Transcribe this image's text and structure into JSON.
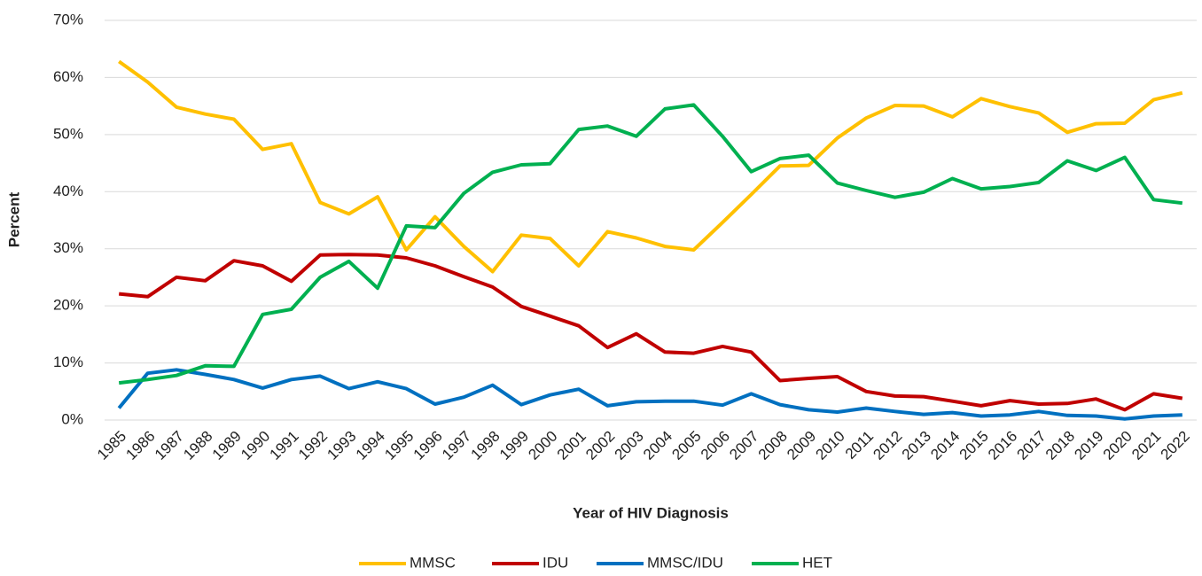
{
  "chart_data": {
    "type": "line",
    "y_label": "Percent",
    "x_label": "Year of HIV Diagnosis",
    "categories": [
      "1985",
      "1986",
      "1987",
      "1988",
      "1989",
      "1990",
      "1991",
      "1992",
      "1993",
      "1994",
      "1995",
      "1996",
      "1997",
      "1998",
      "1999",
      "2000",
      "2001",
      "2002",
      "2003",
      "2004",
      "2005",
      "2006",
      "2007",
      "2008",
      "2009",
      "2010",
      "2011",
      "2012",
      "2013",
      "2014",
      "2015",
      "2016",
      "2017",
      "2018",
      "2019",
      "2020",
      "2021",
      "2022"
    ],
    "series": [
      {
        "name": "MMSC",
        "color": "#FFC000",
        "values": [
          62.8,
          59.2,
          54.8,
          53.6,
          52.7,
          47.4,
          48.4,
          38.1,
          36.1,
          39.1,
          29.8,
          35.6,
          30.4,
          26.0,
          32.4,
          31.8,
          27.0,
          33.0,
          31.9,
          30.4,
          29.8,
          34.6,
          39.5,
          44.5,
          44.6,
          49.4,
          52.9,
          55.1,
          55.0,
          53.1,
          56.3,
          54.9,
          53.8,
          50.4,
          51.9,
          52.0,
          56.1,
          57.3
        ]
      },
      {
        "name": "IDU",
        "color": "#C00000",
        "values": [
          22.1,
          21.6,
          25.0,
          24.4,
          27.9,
          27.0,
          24.3,
          28.9,
          29.0,
          28.9,
          28.4,
          27.0,
          25.1,
          23.3,
          19.9,
          18.2,
          16.5,
          12.7,
          15.1,
          11.9,
          11.7,
          12.9,
          11.9,
          6.9,
          7.3,
          7.6,
          5.0,
          4.2,
          4.1,
          3.3,
          2.5,
          3.4,
          2.8,
          2.9,
          3.7,
          1.8,
          4.6,
          3.8
        ]
      },
      {
        "name": "MMSC/IDU",
        "color": "#0070C0",
        "values": [
          2.1,
          8.2,
          8.8,
          8.0,
          7.1,
          5.6,
          7.1,
          7.7,
          5.5,
          6.7,
          5.5,
          2.8,
          4.0,
          6.1,
          2.7,
          4.4,
          5.4,
          2.5,
          3.2,
          3.3,
          3.3,
          2.6,
          4.6,
          2.7,
          1.8,
          1.4,
          2.1,
          1.5,
          1.0,
          1.3,
          0.7,
          0.9,
          1.5,
          0.8,
          0.7,
          0.2,
          0.7,
          0.9
        ]
      },
      {
        "name": "HET",
        "color": "#00B050",
        "values": [
          6.5,
          7.1,
          7.8,
          9.5,
          9.4,
          18.5,
          19.4,
          25.0,
          27.8,
          23.1,
          34.0,
          33.7,
          39.7,
          43.4,
          44.7,
          44.9,
          50.9,
          51.5,
          49.7,
          54.5,
          55.2,
          49.7,
          43.5,
          45.8,
          46.4,
          41.5,
          40.2,
          39.0,
          39.9,
          42.3,
          40.5,
          40.9,
          41.6,
          45.4,
          43.7,
          46.0,
          38.6,
          38.0
        ]
      }
    ],
    "ylim": [
      0,
      70
    ],
    "yticks": [
      {
        "value": 0,
        "label": "0%"
      },
      {
        "value": 10,
        "label": "10%"
      },
      {
        "value": 20,
        "label": "20%"
      },
      {
        "value": 30,
        "label": "30%"
      },
      {
        "value": 40,
        "label": "40%"
      },
      {
        "value": 50,
        "label": "50%"
      },
      {
        "value": 60,
        "label": "60%"
      },
      {
        "value": 70,
        "label": "70%"
      }
    ],
    "grid": true,
    "legend": "bottom"
  }
}
